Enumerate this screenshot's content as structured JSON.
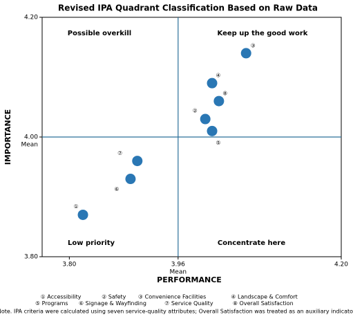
{
  "chart_data": {
    "type": "scatter",
    "title": "Revised IPA Quadrant Classification Based on Raw Data",
    "xlabel": "PERFORMANCE",
    "ylabel": "IMPORTANCE",
    "x": [
      3.82,
      4.0,
      4.06,
      4.01,
      4.01,
      3.89,
      3.9,
      4.02
    ],
    "values": [
      3.87,
      4.03,
      4.14,
      4.09,
      4.01,
      3.93,
      3.96,
      4.06
    ],
    "point_labels": [
      "①",
      "②",
      "③",
      "④",
      "⑤",
      "⑥",
      "⑦",
      "⑧"
    ],
    "color": "#2a77b4",
    "xlim": [
      3.76,
      4.2
    ],
    "ylim": [
      3.8,
      4.2
    ],
    "xticks": [
      {
        "value": 3.8,
        "label": "3.80"
      },
      {
        "value": 3.96,
        "label": "3.96"
      },
      {
        "value": 4.2,
        "label": "4.20"
      }
    ],
    "yticks": [
      {
        "value": 3.8,
        "label": "3.80"
      },
      {
        "value": 4.0,
        "label": "4.00"
      },
      {
        "value": 4.2,
        "label": "4.20"
      }
    ],
    "mean_label": "Mean",
    "reference_lines": {
      "x": 3.96,
      "y": 4.0
    },
    "quadrant_labels": {
      "top_left": "Possible overkill",
      "top_right": "Keep up the good work",
      "bottom_left": "Low priority",
      "bottom_right": "Concentrate here"
    },
    "legend_rows": [
      [
        "① Accessibility",
        "② Safety",
        "③ Convenience Facilities",
        "④ Landscape & Comfort"
      ],
      [
        "⑤ Programs",
        "⑥ Signage & Wayfinding",
        "⑦ Service Quality",
        "⑧ Overall Satisfaction"
      ]
    ],
    "note": "Note. IPA criteria were calculated using seven service-quality attributes; Overall Satisfaction was treated as an auxiliary indicator."
  }
}
